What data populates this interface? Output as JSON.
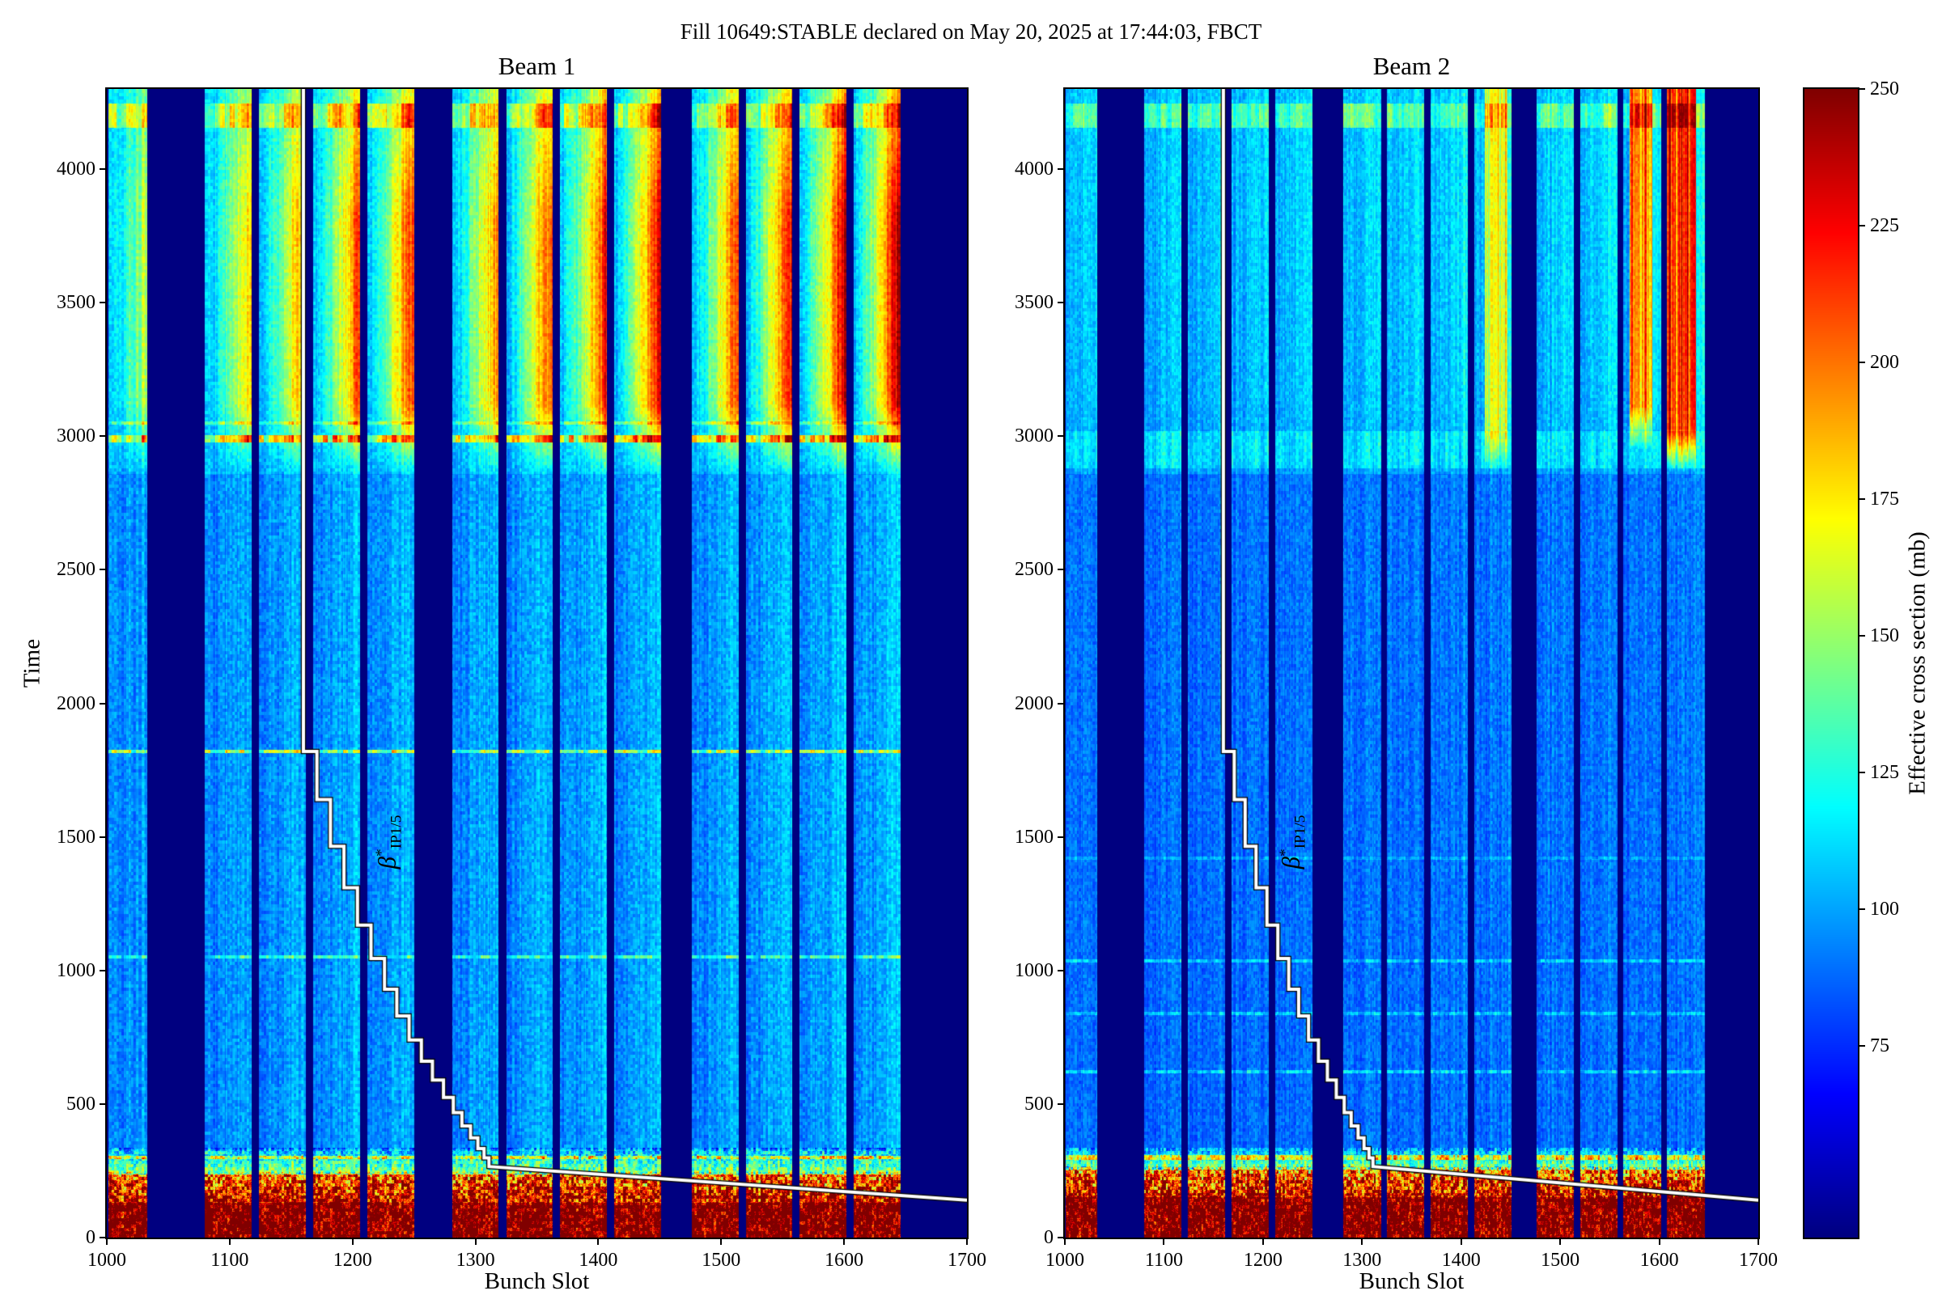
{
  "chart_data": {
    "type": "heatmap",
    "title": "Fill 10649:STABLE declared on May 20, 2025 at 17:44:03, FBCT",
    "subplots": [
      {
        "title": "Beam 1"
      },
      {
        "title": "Beam 2"
      }
    ],
    "xlabel": "Bunch Slot",
    "ylabel": "Time",
    "xlim": [
      1000,
      1700
    ],
    "ylim": [
      0,
      4300
    ],
    "x_ticks": [
      1000,
      1100,
      1200,
      1300,
      1400,
      1500,
      1600,
      1700
    ],
    "y_ticks": [
      0,
      500,
      1000,
      1500,
      2000,
      2500,
      3000,
      3500,
      4000
    ],
    "colorbar": {
      "label": "Effective cross section (mb)",
      "ticks": [
        75,
        100,
        125,
        150,
        175,
        200,
        225,
        250
      ],
      "vmin": 40,
      "vmax": 250,
      "colormap": "jet",
      "gap_color": "#000080"
    },
    "bunch_trains": [
      [
        1001,
        1032
      ],
      [
        1080,
        1117
      ],
      [
        1124,
        1161
      ],
      [
        1168,
        1205
      ],
      [
        1212,
        1249
      ],
      [
        1281,
        1318
      ],
      [
        1325,
        1362
      ],
      [
        1369,
        1406
      ],
      [
        1413,
        1450
      ],
      [
        1476,
        1513
      ],
      [
        1520,
        1557
      ],
      [
        1564,
        1601
      ],
      [
        1608,
        1645
      ]
    ],
    "beta_star_label": {
      "symbol": "β",
      "sup": "*",
      "sub": "IP1/5",
      "anchor": [
        1230,
        1480
      ]
    },
    "beta_star_steps": [
      [
        1160,
        4300
      ],
      [
        1160,
        1820
      ],
      [
        1171,
        1820
      ],
      [
        1171,
        1640
      ],
      [
        1182,
        1640
      ],
      [
        1182,
        1465
      ],
      [
        1193,
        1465
      ],
      [
        1193,
        1310
      ],
      [
        1204,
        1310
      ],
      [
        1204,
        1170
      ],
      [
        1215,
        1170
      ],
      [
        1215,
        1045
      ],
      [
        1226,
        1045
      ],
      [
        1226,
        930
      ],
      [
        1236,
        930
      ],
      [
        1236,
        830
      ],
      [
        1246,
        830
      ],
      [
        1246,
        740
      ],
      [
        1256,
        740
      ],
      [
        1256,
        660
      ],
      [
        1265,
        660
      ],
      [
        1265,
        590
      ],
      [
        1274,
        590
      ],
      [
        1274,
        525
      ],
      [
        1282,
        525
      ],
      [
        1282,
        468
      ],
      [
        1289,
        468
      ],
      [
        1289,
        418
      ],
      [
        1296,
        418
      ],
      [
        1296,
        373
      ],
      [
        1302,
        373
      ],
      [
        1302,
        333
      ],
      [
        1307,
        333
      ],
      [
        1307,
        298
      ],
      [
        1311,
        298
      ],
      [
        1311,
        266
      ],
      [
        1700,
        140
      ]
    ],
    "beams": [
      {
        "name": "Beam 1",
        "seed": 7,
        "base": [
          {
            "t0": 0,
            "t1": 130,
            "v0": 268,
            "v1": 268
          },
          {
            "t0": 130,
            "t1": 235,
            "v0": 240,
            "v1": 205
          },
          {
            "t0": 235,
            "t1": 330,
            "v0": 150,
            "v1": 104
          },
          {
            "t0": 330,
            "t1": 2860,
            "v0": 91,
            "v1": 93
          },
          {
            "t0": 2860,
            "t1": 4300,
            "v0": 101,
            "v1": 108
          }
        ],
        "noise": [
          {
            "t0": 0,
            "t1": 245,
            "amp": 52
          },
          {
            "t0": 245,
            "t1": 335,
            "amp": 26
          },
          {
            "t0": 335,
            "t1": 4300,
            "amp": 9
          }
        ],
        "tail": {
          "t_on": 2860,
          "t_peak1": 3120,
          "t_peak2": 3800,
          "t_end": 4300,
          "end_frac": 0.55,
          "amp": 96,
          "mid_amp": 13
        },
        "rows": [
          {
            "t": 300,
            "h": 14,
            "dv": 48
          },
          {
            "t": 1050,
            "h": 13,
            "dv": 30
          },
          {
            "t": 1820,
            "h": 13,
            "dv": 55
          },
          {
            "t": 2990,
            "h": 26,
            "dv": 60
          },
          {
            "t": 3050,
            "h": 12,
            "dv": 25
          },
          {
            "t": 4200,
            "h": 90,
            "dv": 34
          }
        ],
        "train_weights": [
          0.5,
          0.72,
          0.85,
          0.95,
          1.05,
          0.85,
          1.0,
          1.05,
          1.15,
          1.0,
          1.1,
          1.2,
          1.25
        ],
        "hot_columns": []
      },
      {
        "name": "Beam 2",
        "seed": 13,
        "base": [
          {
            "t0": 0,
            "t1": 150,
            "v0": 268,
            "v1": 268
          },
          {
            "t0": 150,
            "t1": 255,
            "v0": 235,
            "v1": 200
          },
          {
            "t0": 255,
            "t1": 335,
            "v0": 150,
            "v1": 98
          },
          {
            "t0": 335,
            "t1": 2860,
            "v0": 87,
            "v1": 89
          },
          {
            "t0": 2860,
            "t1": 4300,
            "v0": 98,
            "v1": 104
          }
        ],
        "noise": [
          {
            "t0": 0,
            "t1": 265,
            "amp": 52
          },
          {
            "t0": 265,
            "t1": 335,
            "amp": 24
          },
          {
            "t0": 335,
            "t1": 4300,
            "amp": 8
          }
        ],
        "tail": {
          "t_on": 2860,
          "t_peak1": 3150,
          "t_peak2": 3900,
          "t_end": 4300,
          "end_frac": 0.8,
          "amp": 26,
          "mid_amp": 8
        },
        "rows": [
          {
            "t": 300,
            "h": 16,
            "dv": 52
          },
          {
            "t": 620,
            "h": 12,
            "dv": 22
          },
          {
            "t": 840,
            "h": 12,
            "dv": 18
          },
          {
            "t": 1035,
            "h": 12,
            "dv": 20
          },
          {
            "t": 1420,
            "h": 10,
            "dv": 12
          },
          {
            "t": 2950,
            "h": 140,
            "dv": 13
          },
          {
            "t": 4200,
            "h": 90,
            "dv": 26
          }
        ],
        "train_weights": [
          0.3,
          0.3,
          0.32,
          0.35,
          0.4,
          0.35,
          0.42,
          0.5,
          0.55,
          0.45,
          0.5,
          0.55,
          0.6
        ],
        "hot_columns": [
          {
            "s0": 1424,
            "s1": 1446,
            "dv": 58,
            "t_on": 2870
          },
          {
            "s0": 1570,
            "s1": 1592,
            "dv": 88,
            "t_on": 2950
          },
          {
            "s0": 1608,
            "s1": 1636,
            "dv": 112,
            "t_on": 2870
          }
        ]
      }
    ]
  }
}
